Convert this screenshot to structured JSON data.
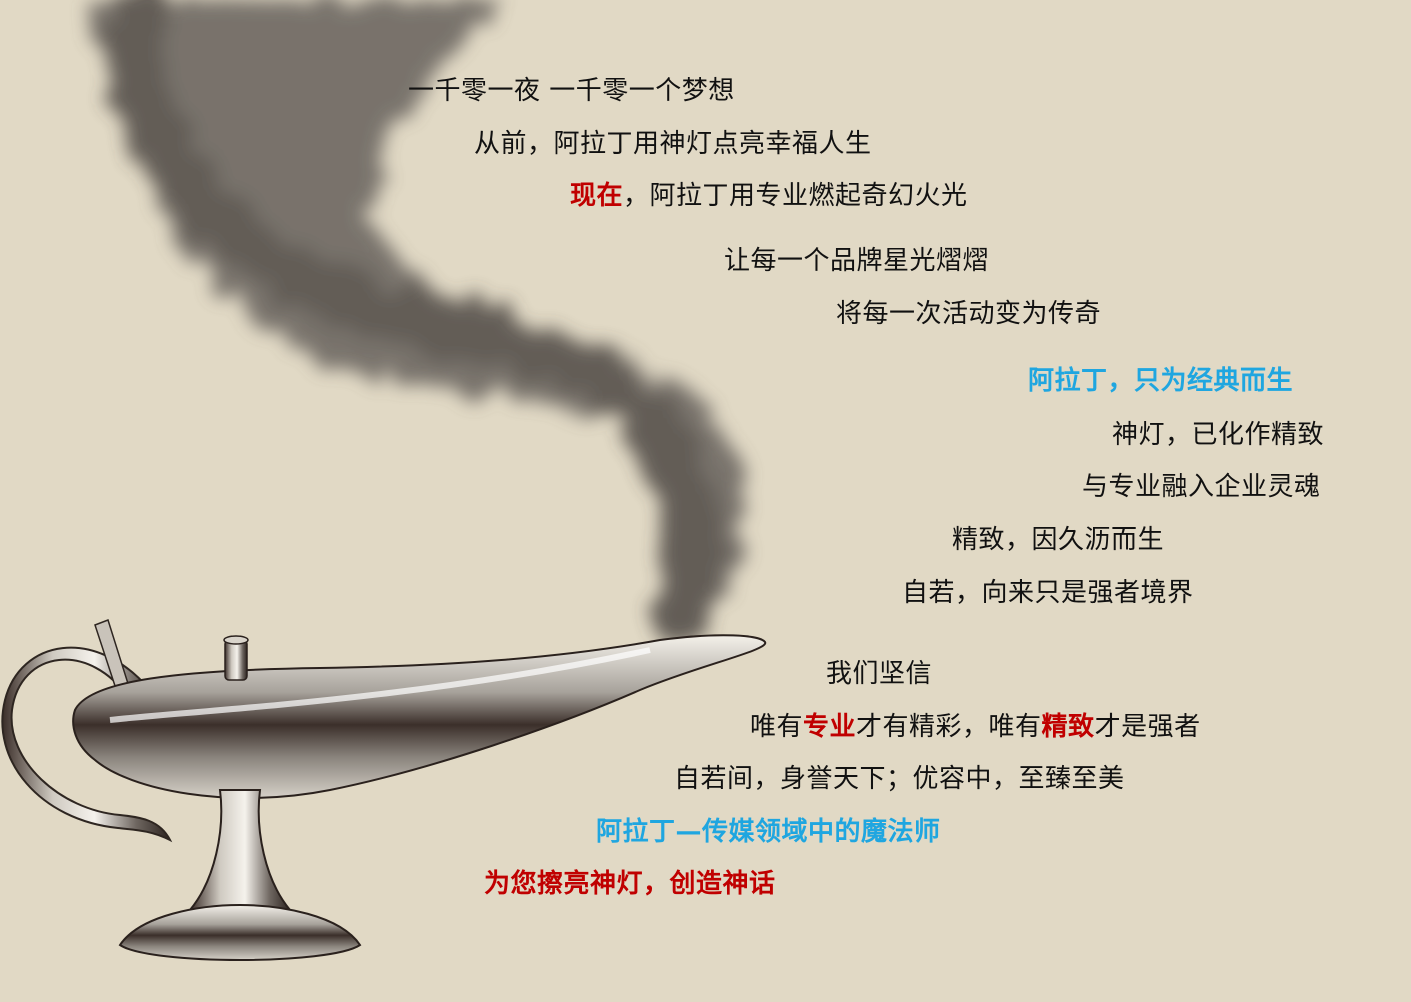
{
  "colors": {
    "background": "#e1d9c5",
    "text": "#111111",
    "accent_red": "#c00000",
    "accent_blue": "#1fa6e0"
  },
  "lines": {
    "l1": "一千零一夜  一千零一个梦想",
    "l2": "从前，阿拉丁用神灯点亮幸福人生",
    "l3_highlight": "现在",
    "l3_rest": "，阿拉丁用专业燃起奇幻火光",
    "l4": "让每一个品牌星光熠熠",
    "l5": "将每一次活动变为传奇",
    "l6": "阿拉丁，只为经典而生",
    "l7": "神灯，已化作精致",
    "l8": "与专业融入企业灵魂",
    "l9": "精致，因久沥而生",
    "l10": "自若，向来只是强者境界",
    "l11": "我们坚信",
    "l12_a": "唯有",
    "l12_b": "专业",
    "l12_c": "才有精彩，唯有",
    "l12_d": "精致",
    "l12_e": "才是强者",
    "l13": "自若间，身誉天下；优容中，至臻至美",
    "l14": "阿拉丁—传媒领域中的魔法师",
    "l15": "为您擦亮神灯，创造神话"
  },
  "illustration": {
    "objects": [
      "smoke-plume",
      "magic-lamp"
    ]
  }
}
